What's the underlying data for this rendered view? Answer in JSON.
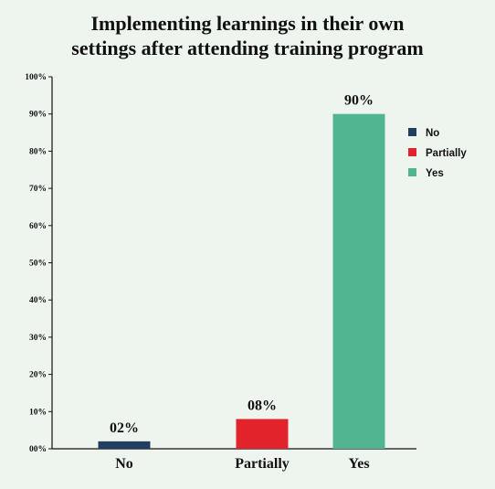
{
  "chart_data": {
    "type": "bar",
    "title_lines": [
      "Implementing learnings in their own",
      "settings after attending training program"
    ],
    "categories": [
      "No",
      "Partially",
      "Yes"
    ],
    "values": [
      2,
      8,
      90
    ],
    "data_labels": [
      "02%",
      "08%",
      "90%"
    ],
    "colors": [
      "#213f5e",
      "#e2232b",
      "#52b592"
    ],
    "ylim": [
      0,
      100
    ],
    "yticks": [
      0,
      10,
      20,
      30,
      40,
      50,
      60,
      70,
      80,
      90,
      100
    ],
    "ytick_labels": [
      "00%",
      "10%",
      "20%",
      "30%",
      "40%",
      "50%",
      "60%",
      "70%",
      "80%",
      "90%",
      "100%"
    ],
    "xlabel": "",
    "ylabel": "",
    "grid": false,
    "legend": {
      "placement": "right",
      "entries": [
        {
          "label": "No",
          "color": "#213f5e"
        },
        {
          "label": "Partially",
          "color": "#e2232b"
        },
        {
          "label": "Yes",
          "color": "#52b592"
        }
      ]
    }
  }
}
